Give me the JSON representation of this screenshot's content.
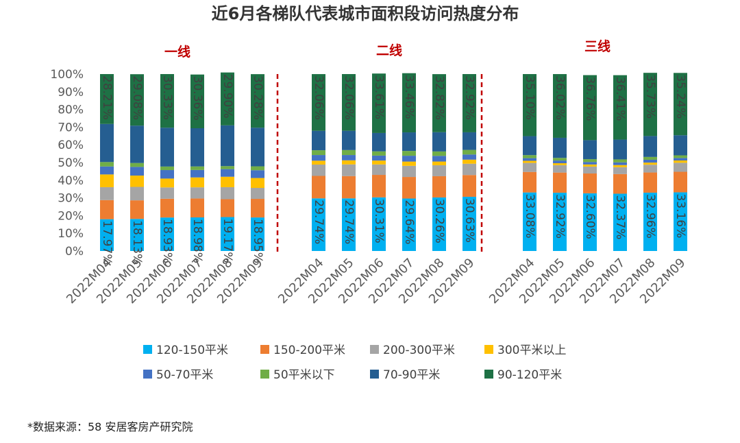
{
  "chart_data": {
    "type": "bar",
    "stacked": true,
    "percent": true,
    "title": "近6月各梯队代表城市面积段访问热度分布",
    "categories": [
      "2022M04",
      "2022M05",
      "2022M06",
      "2022M07",
      "2022M08",
      "2022M09"
    ],
    "ylim": [
      0,
      100
    ],
    "yticks": [
      "0%",
      "10%",
      "20%",
      "30%",
      "40%",
      "50%",
      "60%",
      "70%",
      "80%",
      "90%",
      "100%"
    ],
    "legend": [
      "120-150平米",
      "150-200平米",
      "200-300平米",
      "300平米以上",
      "50-70平米",
      "50平米以下",
      "70-90平米",
      "90-120平米"
    ],
    "series_colors": {
      "120-150平米": "#00B0F0",
      "150-200平米": "#ED7D31",
      "200-300平米": "#A5A5A5",
      "300平米以上": "#FFC000",
      "50-70平米": "#4472C4",
      "50平米以下": "#70AD47",
      "70-90平米": "#255E91",
      "90-120平米": "#1E7145"
    },
    "stack_order": [
      "120-150平米",
      "150-200平米",
      "200-300平米",
      "300平米以上",
      "50-70平米",
      "50平米以下",
      "70-90平米",
      "90-120平米"
    ],
    "label_series": [
      "120-150平米",
      "90-120平米"
    ],
    "divider_color": "#C00000",
    "groups": [
      {
        "name": "一线",
        "values": {
          "120-150平米": [
            17.97,
            18.13,
            18.93,
            18.98,
            19.17,
            18.95
          ],
          "150-200平米": [
            10.8,
            10.5,
            10.6,
            10.7,
            10.1,
            10.5
          ],
          "200-300平米": [
            7.3,
            7.6,
            6.4,
            6.3,
            6.8,
            6.2
          ],
          "300平米以上": [
            7.2,
            6.4,
            5.0,
            5.6,
            5.9,
            5.6
          ],
          "50-70平米": [
            4.5,
            4.9,
            4.8,
            4.2,
            4.3,
            4.4
          ],
          "50平米以下": [
            2.5,
            2.2,
            2.0,
            2.0,
            1.7,
            2.2
          ],
          "70-90平米": [
            21.52,
            21.11,
            21.94,
            21.6,
            23.03,
            21.82
          ],
          "90-120平米": [
            28.21,
            29.08,
            30.33,
            30.36,
            29.9,
            30.28
          ]
        }
      },
      {
        "name": "二线",
        "values": {
          "120-150平米": [
            29.74,
            29.74,
            30.31,
            29.64,
            30.26,
            30.63
          ],
          "150-200平米": [
            12.7,
            12.6,
            12.7,
            12.2,
            12.0,
            12.3
          ],
          "200-300平米": [
            6.4,
            6.6,
            5.9,
            6.3,
            6.2,
            6.4
          ],
          "300平米以上": [
            2.2,
            2.3,
            2.2,
            2.4,
            2.1,
            2.3
          ],
          "50-70平米": [
            3.2,
            3.0,
            2.8,
            3.3,
            3.2,
            2.9
          ],
          "50平米以下": [
            2.7,
            2.8,
            2.4,
            2.7,
            2.5,
            2.6
          ],
          "70-90平米": [
            10.98,
            10.9,
            10.38,
            10.5,
            10.88,
            9.95
          ],
          "90-120平米": [
            32.06,
            32.06,
            33.61,
            33.46,
            32.82,
            32.92
          ]
        }
      },
      {
        "name": "三线",
        "values": {
          "120-150平米": [
            33.08,
            32.92,
            32.6,
            32.37,
            32.96,
            33.16
          ],
          "150-200平米": [
            11.6,
            11.4,
            11.2,
            11.1,
            11.4,
            11.6
          ],
          "200-300平米": [
            5.1,
            4.2,
            3.9,
            3.9,
            4.4,
            5.1
          ],
          "300平米以上": [
            1.2,
            1.1,
            1.2,
            1.2,
            1.2,
            1.3
          ],
          "50-70平米": [
            1.5,
            1.5,
            1.4,
            1.5,
            1.6,
            1.4
          ],
          "50平米以下": [
            1.7,
            1.5,
            1.6,
            1.7,
            1.6,
            1.5
          ],
          "70-90平米": [
            10.72,
            11.35,
            10.74,
            11.19,
            11.81,
            11.35
          ],
          "90-120平米": [
            35.1,
            36.02,
            36.76,
            36.41,
            35.73,
            35.24
          ]
        }
      }
    ]
  },
  "source_note": "*数据来源：58 安居客房产研究院"
}
